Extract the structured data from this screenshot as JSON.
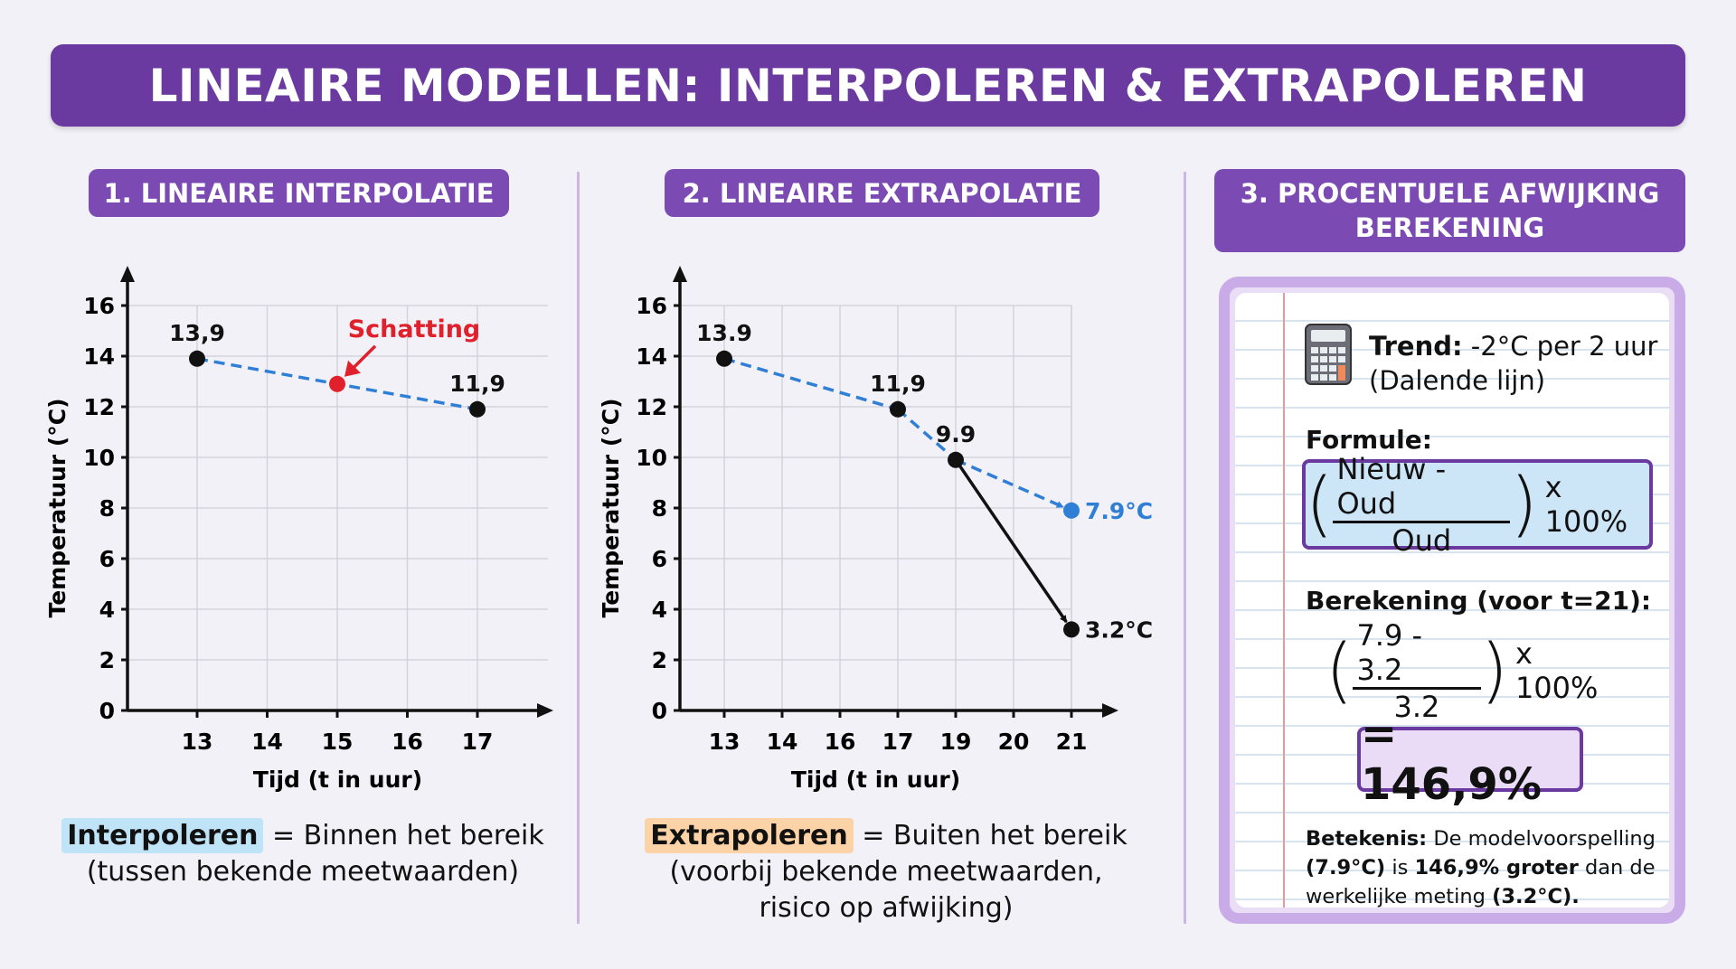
{
  "title": "LINEAIRE MODELLEN: INTERPOLEREN & EXTRAPOLEREN",
  "sections": {
    "s1": "1. LINEAIRE INTERPOLATIE",
    "s2": "2. LINEAIRE EXTRAPOLATIE",
    "s3": "3. PROCENTUELE AFWIJKING BEREKENING"
  },
  "captions": {
    "interp_term": "Interpoleren",
    "interp_rest": " = Binnen het bereik",
    "interp_line2": "(tussen bekende meetwaarden)",
    "extrap_term": "Extrapoleren",
    "extrap_rest": " = Buiten het bereik",
    "extrap_line2": "(voorbij bekende meetwaarden,",
    "extrap_line3": "risico op afwijking)"
  },
  "calc": {
    "icon": "calculator-icon",
    "trend_label": "Trend:",
    "trend_value": " -2°C per 2 uur",
    "trend_note": "(Dalende lijn)",
    "formula_label": "Formule:",
    "formula_num": "Nieuw - Oud",
    "formula_den": "Oud",
    "formula_mult": "x 100%",
    "calc_label": "Berekening (voor t=21):",
    "calc_num": "7.9 - 3.2",
    "calc_den": "3.2",
    "calc_mult": "x 100%",
    "result": "= 146,9%",
    "meaning_label": "Betekenis:",
    "meaning_1": " De modelvoorspelling",
    "meaning_2a": "(7.9°C)",
    "meaning_2b": " is ",
    "meaning_2c": "146,9% groter",
    "meaning_2d": " dan de",
    "meaning_3a": "werkelijke meting ",
    "meaning_3b": "(3.2°C)."
  },
  "colors": {
    "purple": "#6b3aa0",
    "blue_dashed": "#2f7fd6",
    "red": "#e0202a",
    "interp_highlight": "#bfe3f7",
    "extrap_highlight": "#fcd3a6"
  },
  "chart_data": [
    {
      "type": "line",
      "xlabel": "Tijd (t in uur)",
      "ylabel": "Temperatuur (°C)",
      "x_ticks": [
        "13",
        "14",
        "15",
        "16",
        "17"
      ],
      "y_ticks": [
        "0",
        "2",
        "4",
        "6",
        "8",
        "10",
        "12",
        "14",
        "16"
      ],
      "ylim": [
        0,
        16
      ],
      "xlim": [
        13,
        17
      ],
      "grid": true,
      "points": [
        {
          "x": 13,
          "y": 13.9,
          "label": "13,9",
          "color": "#111111"
        },
        {
          "x": 15,
          "y": 12.9,
          "label": "",
          "color": "#e0202a"
        },
        {
          "x": 17,
          "y": 11.9,
          "label": "11,9",
          "color": "#111111"
        }
      ],
      "annotation": {
        "text": "Schatting",
        "x": 15,
        "y": 12.9,
        "color": "#e0202a"
      },
      "lines": [
        {
          "style": "dashed",
          "color": "#2f7fd6",
          "from": [
            13,
            13.9
          ],
          "to": [
            17,
            11.9
          ]
        }
      ]
    },
    {
      "type": "line",
      "xlabel": "Tijd (t in uur)",
      "ylabel": "Temperatuur (°C)",
      "x_ticks": [
        "13",
        "14",
        "16",
        "17",
        "19",
        "20",
        "21"
      ],
      "y_ticks": [
        "0",
        "2",
        "4",
        "6",
        "8",
        "10",
        "12",
        "14",
        "16"
      ],
      "ylim": [
        0,
        16
      ],
      "grid": true,
      "points": [
        {
          "x": "13",
          "y": 13.9,
          "label": "13.9",
          "color": "#111111"
        },
        {
          "x": "17",
          "y": 11.9,
          "label": "11,9",
          "color": "#111111"
        },
        {
          "x": "19",
          "y": 9.9,
          "label": "9.9",
          "color": "#111111"
        },
        {
          "x": "21",
          "y": 7.9,
          "label": "7.9°C",
          "color": "#2f7fd6"
        },
        {
          "x": "21",
          "y": 3.2,
          "label": "3.2°C",
          "color": "#111111"
        }
      ],
      "lines": [
        {
          "style": "dashed",
          "color": "#2f7fd6",
          "from": [
            "13",
            13.9
          ],
          "to": [
            "17",
            11.9
          ],
          "arrow": false
        },
        {
          "style": "dashed",
          "color": "#2f7fd6",
          "from": [
            "17",
            11.9
          ],
          "to": [
            "19",
            9.9
          ],
          "arrow": false
        },
        {
          "style": "dashed",
          "color": "#2f7fd6",
          "from": [
            "19",
            9.9
          ],
          "to": [
            "21",
            7.9
          ],
          "arrow": true
        },
        {
          "style": "solid",
          "color": "#111111",
          "from": [
            "19",
            9.9
          ],
          "to": [
            "21",
            3.2
          ],
          "arrow": true
        }
      ]
    }
  ]
}
